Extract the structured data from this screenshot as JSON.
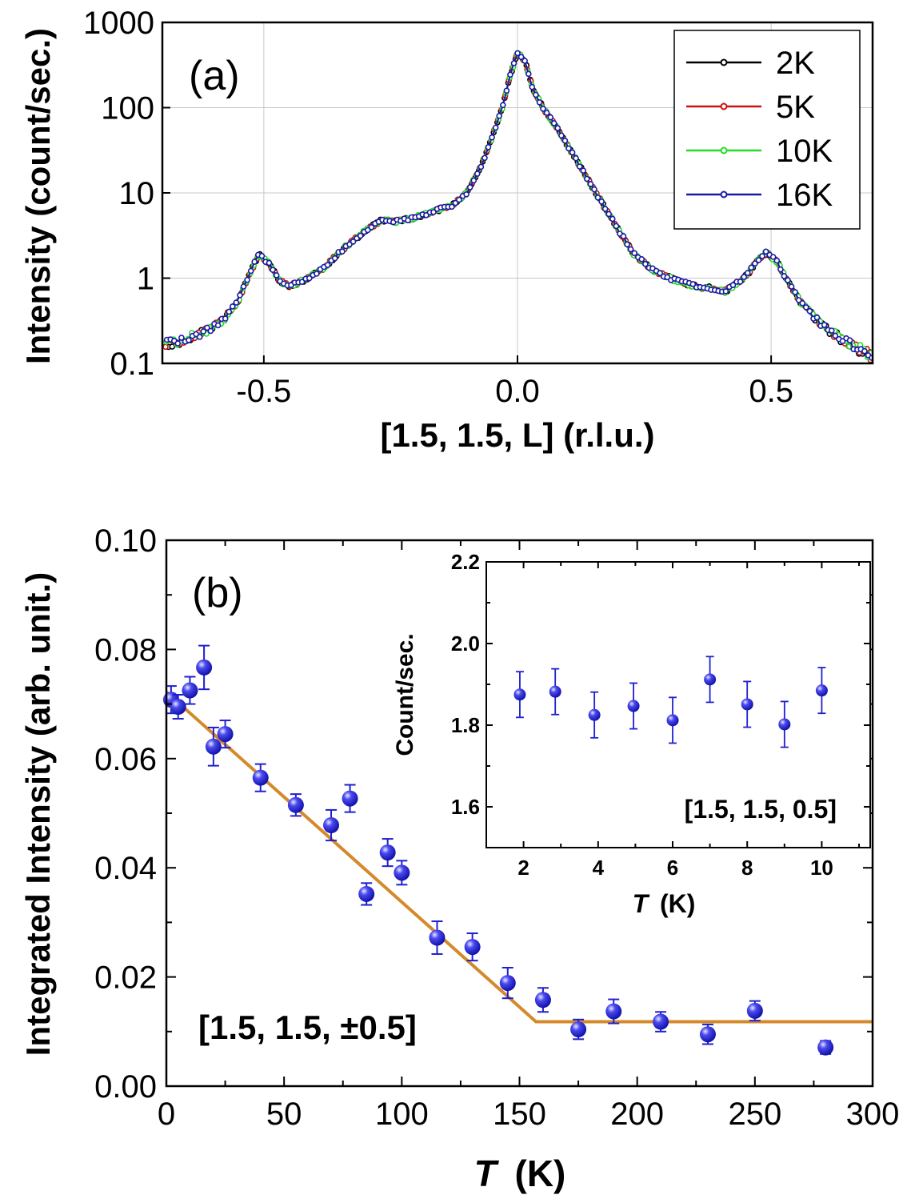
{
  "chart_data": [
    {
      "panel": "(a)",
      "type": "line",
      "xlabel": "[1.5, 1.5, L] (r.l.u.)",
      "ylabel": "Intensity (count/sec.)",
      "xlim": [
        -0.7,
        0.7
      ],
      "ylim": [
        0.1,
        1000
      ],
      "yscale": "log",
      "xticks": [
        -0.5,
        0.0,
        0.5
      ],
      "xtick_labels": [
        "-0.5",
        "0.0",
        "0.5"
      ],
      "yticks": [
        0.1,
        1,
        10,
        100,
        1000
      ],
      "ytick_labels": [
        "0.1",
        "1",
        "10",
        "100",
        "1000"
      ],
      "grid": true,
      "legend_position": "top-right",
      "series": [
        {
          "name": "2K",
          "color": "#000000"
        },
        {
          "name": "5K",
          "color": "#cc1111"
        },
        {
          "name": "10K",
          "color": "#22dd22"
        },
        {
          "name": "16K",
          "color": "#1a1aa6"
        }
      ],
      "profile_L": [
        -0.7,
        -0.66,
        -0.62,
        -0.58,
        -0.55,
        -0.53,
        -0.51,
        -0.49,
        -0.47,
        -0.45,
        -0.42,
        -0.38,
        -0.34,
        -0.3,
        -0.27,
        -0.24,
        -0.21,
        -0.17,
        -0.13,
        -0.1,
        -0.07,
        -0.05,
        -0.03,
        -0.015,
        0.0,
        0.015,
        0.03,
        0.05,
        0.08,
        0.11,
        0.14,
        0.17,
        0.2,
        0.23,
        0.27,
        0.31,
        0.35,
        0.39,
        0.41,
        0.43,
        0.45,
        0.47,
        0.49,
        0.51,
        0.53,
        0.56,
        0.6,
        0.64,
        0.67,
        0.7
      ],
      "profile_I": [
        0.17,
        0.19,
        0.23,
        0.32,
        0.55,
        1.05,
        1.9,
        1.5,
        0.95,
        0.8,
        0.95,
        1.35,
        2.3,
        3.6,
        4.7,
        4.6,
        5.0,
        6.0,
        7.0,
        10.0,
        22.0,
        45.0,
        100.0,
        230.0,
        450.0,
        350.0,
        170.0,
        100.0,
        55.0,
        28.0,
        14.0,
        7.0,
        3.6,
        1.9,
        1.2,
        0.95,
        0.8,
        0.75,
        0.7,
        0.85,
        1.05,
        1.5,
        2.0,
        1.6,
        1.0,
        0.5,
        0.28,
        0.19,
        0.15,
        0.12
      ]
    },
    {
      "panel": "(b)",
      "type": "scatter",
      "xlabel_symbol": "T",
      "xlabel_unit": "(K)",
      "ylabel": "Integrated Intensity (arb. unit.)",
      "xlim": [
        0,
        300
      ],
      "ylim": [
        0,
        0.1
      ],
      "xticks": [
        0,
        50,
        100,
        150,
        200,
        250,
        300
      ],
      "xtick_labels": [
        "0",
        "50",
        "100",
        "150",
        "200",
        "250",
        "300"
      ],
      "yticks": [
        0,
        0.02,
        0.04,
        0.06,
        0.08,
        0.1
      ],
      "ytick_labels": [
        "0.00",
        "0.02",
        "0.04",
        "0.06",
        "0.08",
        "0.10"
      ],
      "annotation": "[1.5, 1.5, ±0.5]",
      "marker_color": "#1f1fd0",
      "fit_color": "#d4892a",
      "points": [
        {
          "x": 2,
          "y": 0.0708,
          "err": 0.0025
        },
        {
          "x": 5,
          "y": 0.0695,
          "err": 0.0022
        },
        {
          "x": 10,
          "y": 0.0725,
          "err": 0.0025
        },
        {
          "x": 16,
          "y": 0.0767,
          "err": 0.004
        },
        {
          "x": 20,
          "y": 0.0622,
          "err": 0.0035
        },
        {
          "x": 25,
          "y": 0.0645,
          "err": 0.0025
        },
        {
          "x": 40,
          "y": 0.0565,
          "err": 0.0025
        },
        {
          "x": 55,
          "y": 0.0515,
          "err": 0.002
        },
        {
          "x": 70,
          "y": 0.0478,
          "err": 0.0028
        },
        {
          "x": 78,
          "y": 0.0527,
          "err": 0.0025
        },
        {
          "x": 85,
          "y": 0.0352,
          "err": 0.002
        },
        {
          "x": 94,
          "y": 0.0428,
          "err": 0.0025
        },
        {
          "x": 100,
          "y": 0.0391,
          "err": 0.0022
        },
        {
          "x": 115,
          "y": 0.0272,
          "err": 0.003
        },
        {
          "x": 130,
          "y": 0.0255,
          "err": 0.0025
        },
        {
          "x": 145,
          "y": 0.0189,
          "err": 0.0028
        },
        {
          "x": 160,
          "y": 0.0158,
          "err": 0.0022
        },
        {
          "x": 175,
          "y": 0.0104,
          "err": 0.0018
        },
        {
          "x": 190,
          "y": 0.0137,
          "err": 0.0022
        },
        {
          "x": 210,
          "y": 0.0118,
          "err": 0.0018
        },
        {
          "x": 230,
          "y": 0.0095,
          "err": 0.0018
        },
        {
          "x": 250,
          "y": 0.0138,
          "err": 0.0018
        },
        {
          "x": 280,
          "y": 0.0071,
          "err": 0.0012
        }
      ],
      "fit_line": [
        {
          "x": 0,
          "y": 0.0722
        },
        {
          "x": 157,
          "y": 0.0118
        },
        {
          "x": 300,
          "y": 0.0118
        }
      ],
      "inset": {
        "xlabel_symbol": "T",
        "xlabel_unit": "(K)",
        "ylabel": "Count/sec.",
        "xlim": [
          1,
          11.3
        ],
        "ylim": [
          1.5,
          2.2
        ],
        "xticks": [
          2,
          4,
          6,
          8,
          10
        ],
        "xtick_labels": [
          "2",
          "4",
          "6",
          "8",
          "10"
        ],
        "yticks": [
          1.6,
          1.8,
          2.0,
          2.2
        ],
        "ytick_labels": [
          "1.6",
          "1.8",
          "2.0",
          "2.2"
        ],
        "annotation": "[1.5, 1.5, 0.5]",
        "points": [
          {
            "x": 1.9,
            "y": 1.875,
            "err": 0.056
          },
          {
            "x": 2.85,
            "y": 1.882,
            "err": 0.056
          },
          {
            "x": 3.9,
            "y": 1.825,
            "err": 0.056
          },
          {
            "x": 4.95,
            "y": 1.847,
            "err": 0.056
          },
          {
            "x": 6.0,
            "y": 1.812,
            "err": 0.056
          },
          {
            "x": 7.0,
            "y": 1.912,
            "err": 0.056
          },
          {
            "x": 8.0,
            "y": 1.851,
            "err": 0.056
          },
          {
            "x": 9.0,
            "y": 1.802,
            "err": 0.056
          },
          {
            "x": 10.0,
            "y": 1.885,
            "err": 0.056
          }
        ]
      }
    }
  ]
}
